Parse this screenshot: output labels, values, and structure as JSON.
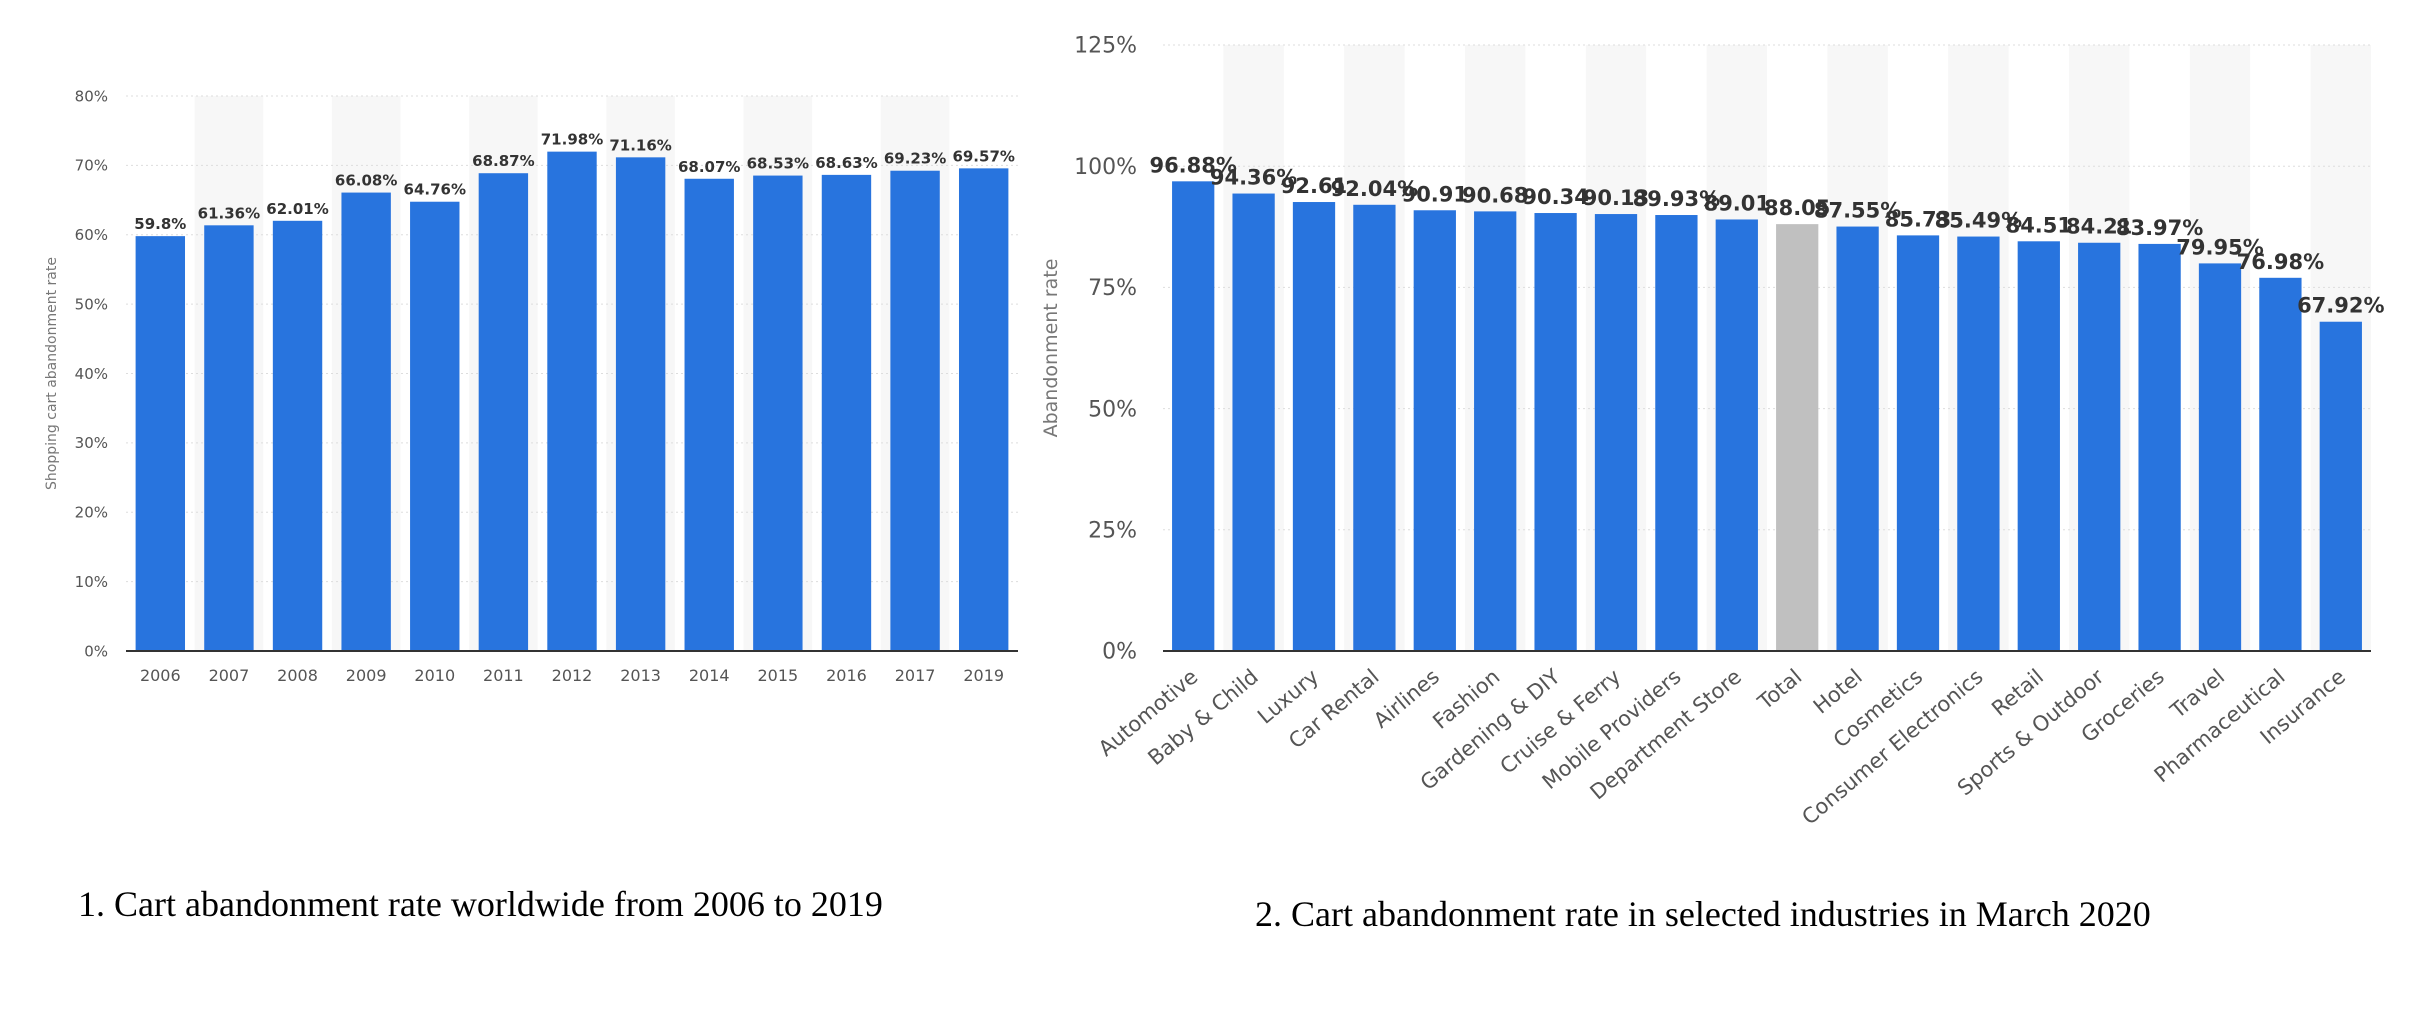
{
  "colors": {
    "bar": "#2874de",
    "highlight": "#c0c0c0",
    "text": "#333333",
    "axis": "#555555",
    "grid": "#dddddd",
    "band": "#f7f7f7"
  },
  "chart_data": [
    {
      "type": "bar",
      "title": "",
      "caption": "1. Cart abandonment rate worldwide from 2006 to 2019",
      "xlabel": "",
      "ylabel": "Shopping cart abandonment rate",
      "ylim": [
        0,
        80
      ],
      "yticks": [
        0,
        10,
        20,
        30,
        40,
        50,
        60,
        70,
        80
      ],
      "ytick_suffix": "%",
      "categories": [
        "2006",
        "2007",
        "2008",
        "2009",
        "2010",
        "2011",
        "2012",
        "2013",
        "2014",
        "2015",
        "2016",
        "2017",
        "2019"
      ],
      "values": [
        59.8,
        61.36,
        62.01,
        66.08,
        64.76,
        68.87,
        71.98,
        71.16,
        68.07,
        68.53,
        68.63,
        69.23,
        69.57
      ],
      "labels": [
        "59.8%",
        "61.36%",
        "62.01%",
        "66.08%",
        "64.76%",
        "68.87%",
        "71.98%",
        "71.16%",
        "68.07%",
        "68.53%",
        "68.63%",
        "69.23%",
        "69.57%"
      ]
    },
    {
      "type": "bar",
      "title": "",
      "caption": "2. Cart abandonment rate in selected industries in March 2020",
      "xlabel": "",
      "ylabel": "Abandonment rate",
      "ylim": [
        0,
        125
      ],
      "yticks": [
        0,
        25,
        50,
        75,
        100,
        125
      ],
      "ytick_suffix": "%",
      "highlight": "Total",
      "categories": [
        "Automotive",
        "Baby & Child",
        "Luxury",
        "Car Rental",
        "Airlines",
        "Fashion",
        "Gardening & DIY",
        "Cruise & Ferry",
        "Mobile Providers",
        "Department Store",
        "Total",
        "Hotel",
        "Cosmetics",
        "Consumer Electronics",
        "Retail",
        "Sports & Outdoor",
        "Groceries",
        "Travel",
        "Pharmaceutical",
        "Insurance"
      ],
      "values": [
        96.88,
        94.36,
        92.61,
        92.04,
        90.91,
        90.68,
        90.34,
        90.13,
        89.93,
        89.01,
        88.05,
        87.55,
        85.73,
        85.49,
        84.51,
        84.21,
        83.97,
        79.95,
        76.98,
        67.92
      ],
      "labels": [
        "96.88%",
        "94.36%",
        "92.61",
        "92.04%",
        "90.91",
        "90.68",
        "90.34",
        "90.13",
        "89.93%",
        "89.01",
        "88.05",
        "87.55%",
        "85.73",
        "85.49%",
        "84.51",
        "84.21",
        "83.97%",
        "79.95%",
        "76.98%",
        "67.92%"
      ]
    }
  ]
}
